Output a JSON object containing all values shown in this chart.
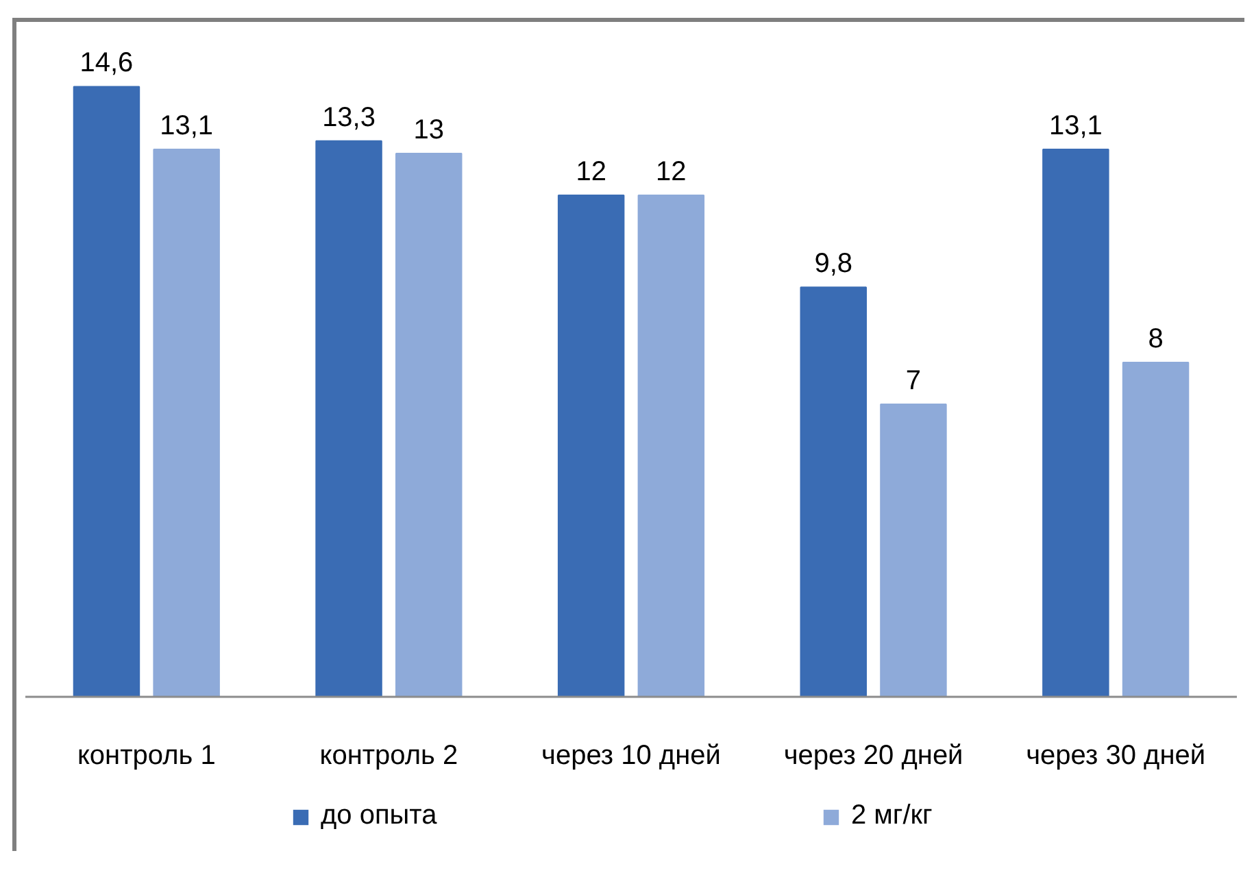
{
  "chart_data": {
    "type": "bar",
    "categories": [
      "контроль 1",
      "контроль 2",
      "через 10 дней",
      "через 20 дней",
      "через 30 дней"
    ],
    "series": [
      {
        "name": "до опыта",
        "color": "#3a6cb4",
        "values": [
          14.6,
          13.3,
          12,
          9.8,
          13.1
        ],
        "value_labels": [
          "14,6",
          "13,3",
          "12",
          "9,8",
          "13,1"
        ]
      },
      {
        "name": "2 мг/кг",
        "color": "#8eaad9",
        "values": [
          13.1,
          13,
          12,
          7,
          8
        ],
        "value_labels": [
          "13,1",
          "13",
          "12",
          "7",
          "8"
        ]
      }
    ],
    "tick_labels": "x",
    "legend": "bottom"
  }
}
